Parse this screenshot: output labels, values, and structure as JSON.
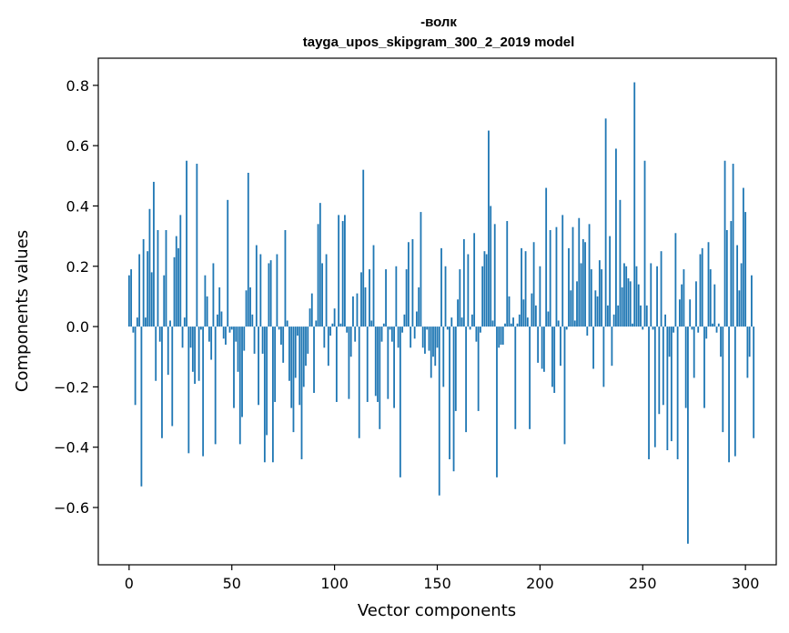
{
  "chart_data": {
    "type": "bar",
    "title": "-волк",
    "subtitle": "tayga_upos_skipgram_300_2_2019 model",
    "xlabel": "Vector components",
    "ylabel": "Components values",
    "xlim": [
      -15,
      315
    ],
    "ylim": [
      -0.79,
      0.89
    ],
    "xticks": [
      0,
      50,
      100,
      150,
      200,
      250,
      300
    ],
    "yticks": [
      -0.6,
      -0.4,
      -0.2,
      0.0,
      0.2,
      0.4,
      0.6,
      0.8
    ],
    "ytick_labels": [
      "−0.6",
      "−0.4",
      "−0.2",
      "0.0",
      "0.2",
      "0.4",
      "0.6",
      "0.8"
    ],
    "bar_color": "#1f77b4",
    "grid": false,
    "legend": false,
    "values": [
      0.17,
      0.19,
      -0.02,
      -0.26,
      0.03,
      0.24,
      -0.53,
      0.29,
      0.03,
      0.25,
      0.39,
      0.18,
      0.48,
      -0.18,
      0.32,
      -0.05,
      -0.37,
      0.17,
      0.32,
      -0.16,
      0.02,
      -0.33,
      0.23,
      0.3,
      0.26,
      0.37,
      -0.07,
      0.03,
      0.55,
      -0.42,
      -0.07,
      -0.15,
      -0.19,
      0.54,
      -0.18,
      -0.01,
      -0.43,
      0.17,
      0.1,
      -0.05,
      -0.11,
      0.21,
      -0.39,
      0.04,
      0.13,
      0.05,
      -0.04,
      -0.06,
      0.42,
      -0.02,
      -0.01,
      -0.27,
      -0.05,
      -0.15,
      -0.39,
      -0.3,
      -0.08,
      0.12,
      0.51,
      0.13,
      0.04,
      -0.09,
      0.27,
      -0.26,
      0.24,
      -0.09,
      -0.45,
      -0.36,
      0.21,
      0.22,
      -0.45,
      -0.25,
      0.24,
      -0.01,
      -0.06,
      -0.12,
      0.32,
      0.02,
      -0.18,
      -0.27,
      -0.35,
      -0.17,
      -0.03,
      -0.26,
      -0.44,
      -0.2,
      -0.13,
      -0.09,
      0.06,
      0.11,
      -0.22,
      0.02,
      0.34,
      0.41,
      0.21,
      -0.07,
      0.24,
      -0.13,
      -0.03,
      0.01,
      0.06,
      -0.25,
      0.37,
      0.01,
      0.35,
      0.37,
      -0.02,
      -0.24,
      -0.1,
      0.1,
      -0.05,
      0.11,
      -0.37,
      0.18,
      0.52,
      0.13,
      -0.25,
      0.19,
      0.02,
      0.27,
      -0.23,
      -0.25,
      -0.34,
      -0.05,
      0.01,
      0.19,
      -0.24,
      -0.01,
      -0.05,
      -0.27,
      0.2,
      -0.07,
      -0.5,
      -0.02,
      0.04,
      0.19,
      0.28,
      -0.07,
      0.29,
      -0.04,
      0.05,
      0.13,
      0.38,
      -0.07,
      -0.09,
      -0.01,
      -0.08,
      -0.17,
      -0.1,
      -0.13,
      -0.07,
      -0.56,
      0.26,
      -0.2,
      0.2,
      -0.01,
      -0.44,
      0.03,
      -0.48,
      -0.28,
      0.09,
      0.19,
      0.03,
      0.29,
      -0.35,
      0.24,
      -0.01,
      0.04,
      0.31,
      -0.05,
      -0.28,
      -0.02,
      0.2,
      0.25,
      0.24,
      0.65,
      0.4,
      0.02,
      0.34,
      -0.5,
      -0.07,
      -0.06,
      -0.06,
      0.01,
      0.35,
      0.1,
      0.01,
      0.03,
      -0.34,
      0.01,
      0.04,
      0.26,
      0.09,
      0.25,
      0.03,
      -0.34,
      0.11,
      0.28,
      0.07,
      -0.12,
      0.2,
      -0.14,
      -0.15,
      0.46,
      0.05,
      0.32,
      -0.2,
      -0.22,
      0.33,
      0.02,
      -0.13,
      0.37,
      -0.39,
      -0.01,
      0.26,
      0.12,
      0.33,
      0.02,
      0.15,
      0.36,
      0.21,
      0.29,
      0.28,
      -0.03,
      0.34,
      0.19,
      -0.14,
      0.12,
      0.1,
      0.22,
      0.19,
      -0.2,
      0.69,
      0.07,
      0.3,
      -0.13,
      0.04,
      0.59,
      0.07,
      0.42,
      0.13,
      0.21,
      0.2,
      0.16,
      0.15,
      0.01,
      0.81,
      0.2,
      0.14,
      0.07,
      -0.01,
      0.55,
      0.07,
      -0.44,
      0.21,
      -0.01,
      -0.4,
      0.2,
      -0.29,
      0.25,
      -0.26,
      0.04,
      -0.41,
      -0.1,
      -0.38,
      -0.02,
      0.31,
      -0.44,
      0.09,
      0.14,
      0.19,
      -0.27,
      -0.72,
      0.09,
      -0.01,
      -0.17,
      0.15,
      -0.02,
      0.24,
      0.26,
      -0.27,
      -0.04,
      0.28,
      0.19,
      0.01,
      0.14,
      -0.02,
      0.01,
      -0.1,
      -0.35,
      0.55,
      0.32,
      -0.45,
      0.35,
      0.54,
      -0.43,
      0.27,
      0.12,
      0.21,
      0.46,
      0.38,
      -0.17,
      -0.1,
      0.17,
      -0.37
    ]
  }
}
